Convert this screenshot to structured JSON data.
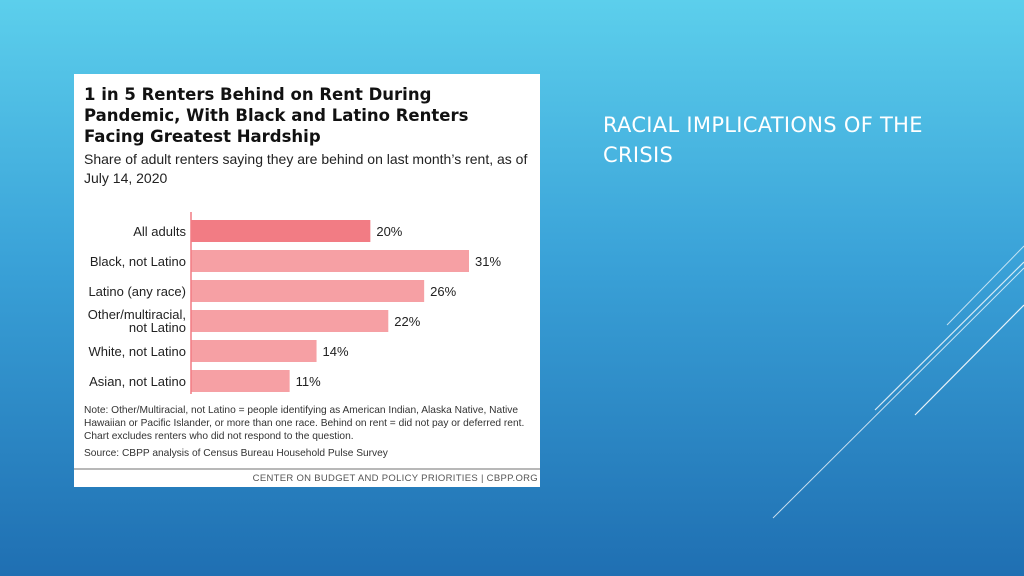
{
  "slide": {
    "title": "RACIAL IMPLICATIONS OF THE CRISIS"
  },
  "colors": {
    "bar_highlight": "#f27c84",
    "bar": "#f6a0a4",
    "axis": "#f27c84"
  },
  "chart_data": {
    "type": "bar",
    "orientation": "horizontal",
    "title": "1 in 5 Renters Behind on Rent During Pandemic, With Black and Latino Renters Facing Greatest Hardship",
    "subtitle": "Share of adult renters saying they are behind on last month’s rent, as of July 14, 2020",
    "categories": [
      "All adults",
      "Black, not Latino",
      "Latino (any race)",
      "Other/multiracial, not Latino",
      "White, not Latino",
      "Asian, not Latino"
    ],
    "values": [
      20,
      31,
      26,
      22,
      14,
      11
    ],
    "value_labels": [
      "20%",
      "31%",
      "26%",
      "22%",
      "14%",
      "11%"
    ],
    "unit": "%",
    "xlim": [
      0,
      35
    ],
    "grid": false,
    "legend": "none",
    "note": "Note: Other/Multiracial, not Latino = people identifying as American Indian, Alaska Native, Native Hawaiian or Pacific Islander, or more than one race. Behind on rent = did not pay or deferred rent. Chart excludes renters who did not respond to the question.",
    "source": "Source: CBPP analysis of Census Bureau Household Pulse Survey",
    "footer": "CENTER ON BUDGET AND POLICY PRIORITIES | CBPP.ORG"
  }
}
